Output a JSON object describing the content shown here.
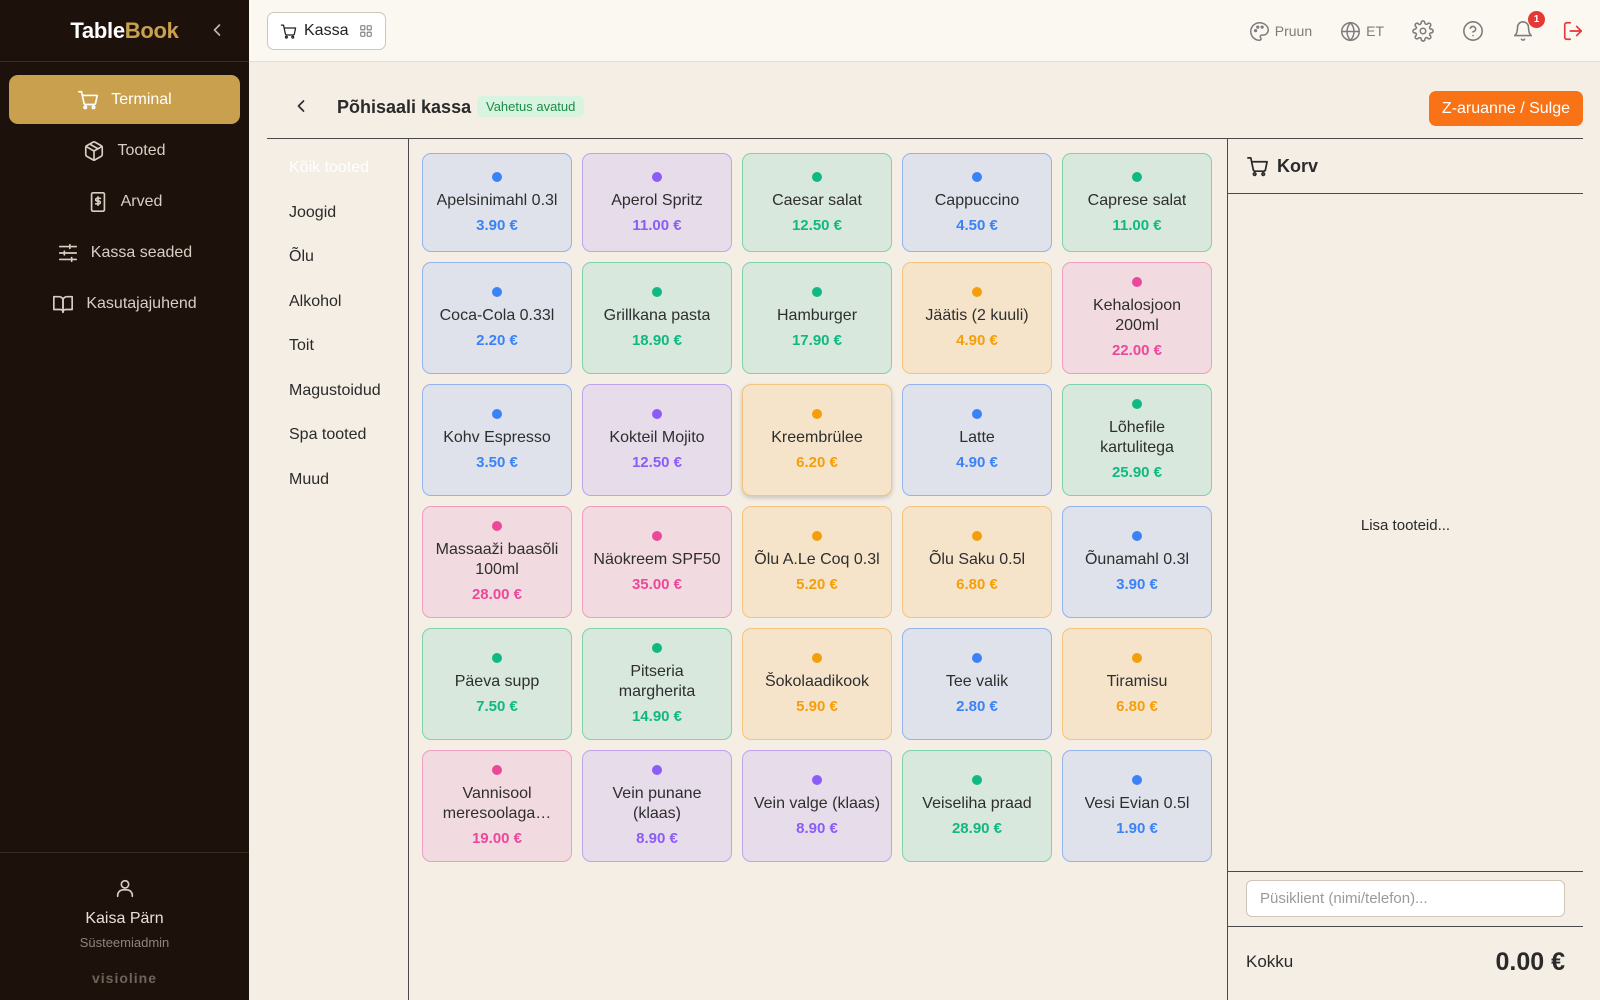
{
  "brand": {
    "part1": "Table",
    "part2": "Book"
  },
  "sidebar": {
    "items": [
      {
        "label": "Terminal",
        "icon": "cart-icon",
        "active": true
      },
      {
        "label": "Tooted",
        "icon": "box-icon"
      },
      {
        "label": "Arved",
        "icon": "receipt-icon"
      },
      {
        "label": "Kassa seaded",
        "icon": "sliders-icon"
      },
      {
        "label": "Kasutajajuhend",
        "icon": "book-icon"
      }
    ],
    "user": {
      "name": "Kaisa Pärn",
      "role": "Süsteemiadmin"
    },
    "footer_brand": "visioline"
  },
  "topbar": {
    "kassa_label": "Kassa",
    "theme_label": "Pruun",
    "lang_label": "ET",
    "notification_count": "1"
  },
  "page": {
    "title": "Põhisaali kassa",
    "shift_status": "Vahetus avatud",
    "z_report_label": "Z-aruanne / Sulge"
  },
  "categories": [
    "Kõik tooted",
    "Joogid",
    "Õlu",
    "Alkohol",
    "Toit",
    "Magustoidud",
    "Spa tooted",
    "Muud"
  ],
  "products": [
    {
      "name": "Apelsinimahl 0.3l",
      "price": "3.90 €",
      "color": "blue"
    },
    {
      "name": "Aperol Spritz",
      "price": "11.00 €",
      "color": "purple"
    },
    {
      "name": "Caesar salat",
      "price": "12.50 €",
      "color": "green"
    },
    {
      "name": "Cappuccino",
      "price": "4.50 €",
      "color": "blue"
    },
    {
      "name": "Caprese salat",
      "price": "11.00 €",
      "color": "green"
    },
    {
      "name": "Coca-Cola 0.33l",
      "price": "2.20 €",
      "color": "blue"
    },
    {
      "name": "Grillkana pasta",
      "price": "18.90 €",
      "color": "green"
    },
    {
      "name": "Hamburger",
      "price": "17.90 €",
      "color": "green"
    },
    {
      "name": "Jäätis (2 kuuli)",
      "price": "4.90 €",
      "color": "orange"
    },
    {
      "name": "Kehalosjoon 200ml",
      "price": "22.00 €",
      "color": "pink"
    },
    {
      "name": "Kohv Espresso",
      "price": "3.50 €",
      "color": "blue"
    },
    {
      "name": "Kokteil Mojito",
      "price": "12.50 €",
      "color": "purple"
    },
    {
      "name": "Kreembrülee",
      "price": "6.20 €",
      "color": "orange",
      "highlight": true
    },
    {
      "name": "Latte",
      "price": "4.90 €",
      "color": "blue"
    },
    {
      "name": "Lõhefile kartulitega",
      "price": "25.90 €",
      "color": "green"
    },
    {
      "name": "Massaaži baasõli 100ml",
      "price": "28.00 €",
      "color": "pink"
    },
    {
      "name": "Näokreem SPF50",
      "price": "35.00 €",
      "color": "pink"
    },
    {
      "name": "Õlu A.Le Coq 0.3l",
      "price": "5.20 €",
      "color": "orange"
    },
    {
      "name": "Õlu Saku 0.5l",
      "price": "6.80 €",
      "color": "orange"
    },
    {
      "name": "Õunamahl 0.3l",
      "price": "3.90 €",
      "color": "blue"
    },
    {
      "name": "Päeva supp",
      "price": "7.50 €",
      "color": "green"
    },
    {
      "name": "Pitseria margherita",
      "price": "14.90 €",
      "color": "green"
    },
    {
      "name": "Šokolaadikook",
      "price": "5.90 €",
      "color": "orange"
    },
    {
      "name": "Tee valik",
      "price": "2.80 €",
      "color": "blue"
    },
    {
      "name": "Tiramisu",
      "price": "6.80 €",
      "color": "orange"
    },
    {
      "name": "Vannisool meresoolaga…",
      "price": "19.00 €",
      "color": "pink"
    },
    {
      "name": "Vein punane (klaas)",
      "price": "8.90 €",
      "color": "purple"
    },
    {
      "name": "Vein valge (klaas)",
      "price": "8.90 €",
      "color": "purple"
    },
    {
      "name": "Veiseliha praad",
      "price": "28.90 €",
      "color": "green"
    },
    {
      "name": "Vesi Evian 0.5l",
      "price": "1.90 €",
      "color": "blue"
    }
  ],
  "cart": {
    "title": "Korv",
    "empty_text": "Lisa tooteid...",
    "customer_placeholder": "Püsiklient (nimi/telefon)...",
    "total_label": "Kokku",
    "total_value": "0.00 €"
  },
  "colors": {
    "accent": "#c9a04d",
    "sidebar_bg": "#1d120b",
    "primary_action": "#f97316",
    "blue": "#3b82f6",
    "purple": "#8b5cf6",
    "green": "#10b981",
    "orange": "#f59e0b",
    "pink": "#ec4899"
  }
}
